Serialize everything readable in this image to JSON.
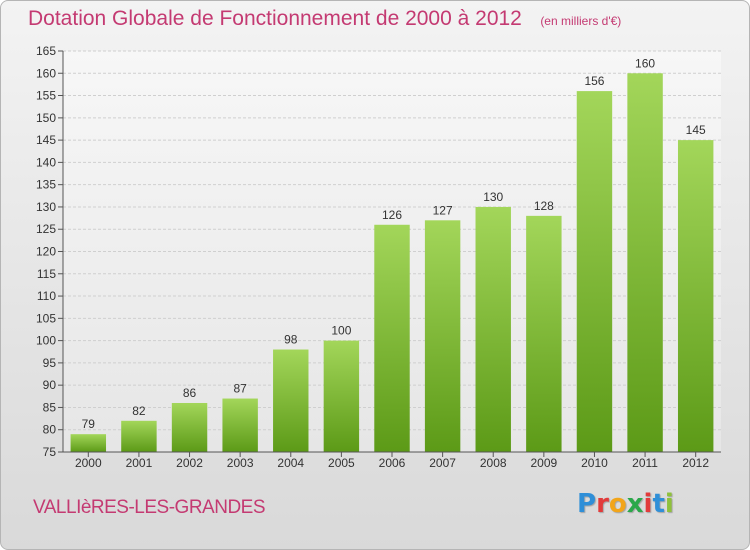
{
  "title": "Dotation Globale de Fonctionnement de 2000 à 2012",
  "unit": "(en milliers d'€)",
  "commune": "VALLIèRES-LES-GRANDES",
  "logo": {
    "letters": [
      "P",
      "r",
      "o",
      "x",
      "i",
      "t",
      "i"
    ],
    "colors": [
      "#2f8fd8",
      "#e23b3b",
      "#f2a51a",
      "#2aa84a",
      "#e23b3b",
      "#2f8fd8",
      "#8fc13b"
    ]
  },
  "colors": {
    "bar_top": "#a3d65a",
    "bar_bottom": "#5c9a17",
    "title": "#c43a72"
  },
  "chart_data": {
    "type": "bar",
    "categories": [
      "2000",
      "2001",
      "2002",
      "2003",
      "2004",
      "2005",
      "2006",
      "2007",
      "2008",
      "2009",
      "2010",
      "2011",
      "2012"
    ],
    "values": [
      79,
      82,
      86,
      87,
      98,
      100,
      126,
      127,
      130,
      128,
      156,
      160,
      145
    ],
    "ylim": [
      75,
      165
    ],
    "yticks": [
      75,
      80,
      85,
      90,
      95,
      100,
      105,
      110,
      115,
      120,
      125,
      130,
      135,
      140,
      145,
      150,
      155,
      160,
      165
    ],
    "grid": true
  }
}
